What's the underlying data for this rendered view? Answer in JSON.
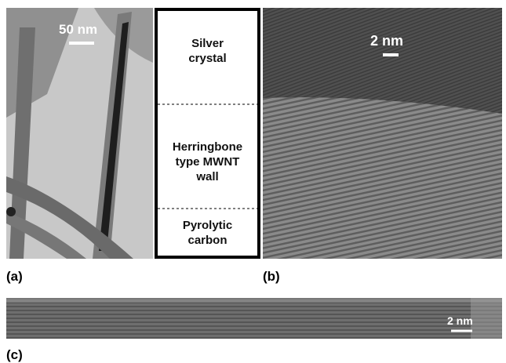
{
  "panel_a": {
    "scale_bar": "50 nm",
    "label": "(a)"
  },
  "schematic": {
    "layers": [
      {
        "lines": [
          "Silver",
          "crystal"
        ]
      },
      {
        "lines": [
          "Herringbone",
          "type MWNT",
          "wall"
        ]
      },
      {
        "lines": [
          "Pyrolytic",
          "carbon"
        ]
      }
    ]
  },
  "panel_b": {
    "scale_bar": "2 nm",
    "label": "(b)"
  },
  "panel_c": {
    "scale_bar": "2 nm",
    "label": "(c)"
  }
}
